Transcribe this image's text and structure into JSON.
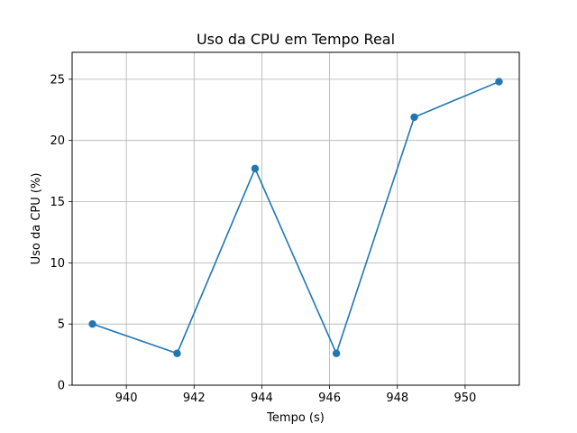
{
  "chart_data": {
    "type": "line",
    "title": "Uso da CPU em Tempo Real",
    "xlabel": "Tempo (s)",
    "ylabel": "Uso da CPU (%)",
    "x": [
      939.0,
      941.5,
      943.8,
      946.2,
      948.5,
      951.0
    ],
    "series": [
      {
        "values": [
          5.0,
          2.6,
          17.7,
          2.6,
          21.9,
          24.8
        ],
        "color": "#1f77b4",
        "marker": "circle"
      }
    ],
    "xlim": [
      938.4,
      951.6
    ],
    "ylim": [
      0,
      27.2
    ],
    "xticks": [
      940,
      942,
      944,
      946,
      948,
      950
    ],
    "yticks": [
      0,
      5,
      10,
      15,
      20,
      25
    ],
    "grid": true
  }
}
